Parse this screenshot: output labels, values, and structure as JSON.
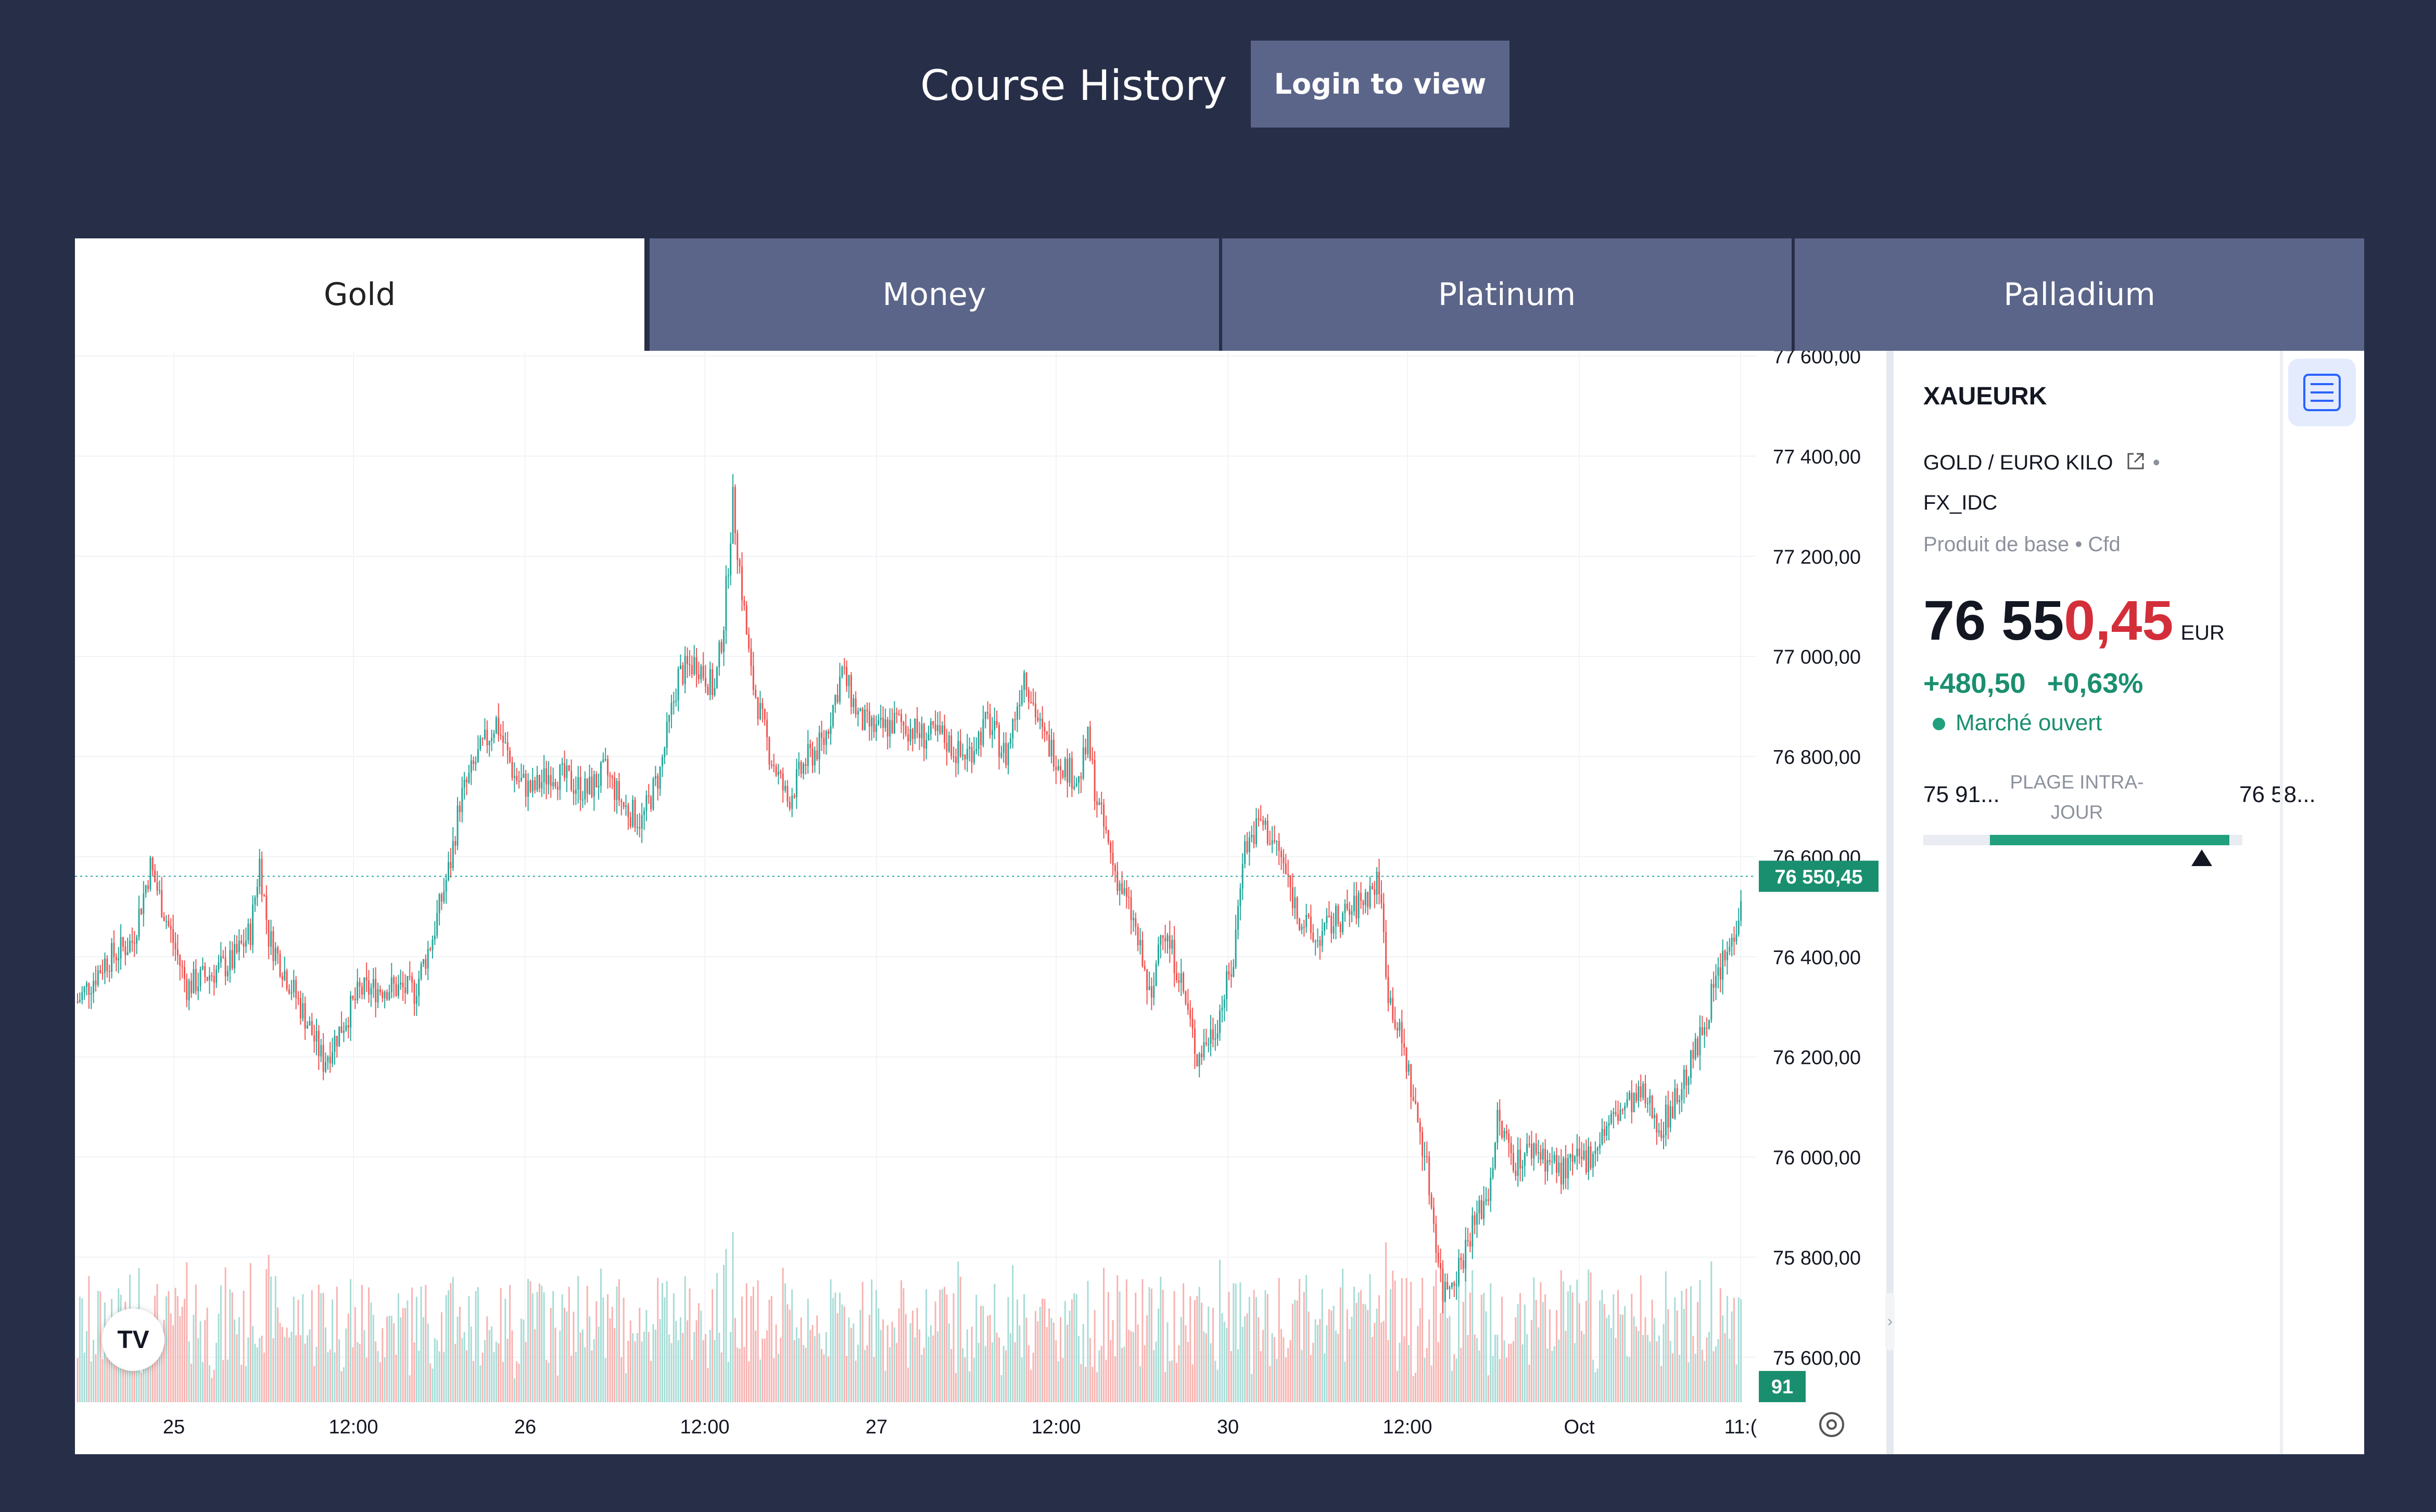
{
  "header": {
    "title": "Course History",
    "login_label": "Login to view"
  },
  "tabs": [
    {
      "label": "Gold",
      "active": true
    },
    {
      "label": "Money",
      "active": false
    },
    {
      "label": "Platinum",
      "active": false
    },
    {
      "label": "Palladium",
      "active": false
    }
  ],
  "symbol": {
    "ticker": "XAUEURK",
    "description": "GOLD / EURO KILO",
    "exchange": "FX_IDC",
    "category": "Produit de base",
    "type": "Cfd",
    "price_main": "76 55",
    "price_red": "0,45",
    "currency": "EUR",
    "change": "+480,50",
    "change_pct": "+0,63%",
    "market_status": "Marché ouvert",
    "range_low": "75 91...",
    "range_high": "76 58...",
    "range_label": "PLAGE INTRA-JOUR",
    "range_position": 0.95
  },
  "chart_data": {
    "type": "candlestick",
    "x_tick_labels": [
      "25",
      "12:00",
      "26",
      "12:00",
      "27",
      "12:00",
      "30",
      "12:00",
      "Oct",
      "11:("
    ],
    "y_tick_labels": [
      "77 600,00",
      "77 400,00",
      "77 200,00",
      "77 000,00",
      "76 800,00",
      "76 600,00",
      "76 400,00",
      "76 200,00",
      "76 000,00",
      "75 800,00",
      "75 600,00"
    ],
    "ylim": [
      75500,
      77600
    ],
    "last_price": 76550.45,
    "last_price_label": "76 550,45",
    "volume_label": "91",
    "close_path": [
      [
        0,
        76300
      ],
      [
        3,
        76380
      ],
      [
        6,
        76420
      ],
      [
        8,
        76570
      ],
      [
        10,
        76450
      ],
      [
        12,
        76330
      ],
      [
        14,
        76350
      ],
      [
        17,
        76380
      ],
      [
        19,
        76440
      ],
      [
        20,
        76580
      ],
      [
        21,
        76430
      ],
      [
        23,
        76350
      ],
      [
        25,
        76270
      ],
      [
        27,
        76180
      ],
      [
        29,
        76250
      ],
      [
        31,
        76320
      ],
      [
        34,
        76330
      ],
      [
        37,
        76320
      ],
      [
        39,
        76430
      ],
      [
        41,
        76580
      ],
      [
        42,
        76700
      ],
      [
        44,
        76790
      ],
      [
        46,
        76860
      ],
      [
        48,
        76750
      ],
      [
        50,
        76720
      ],
      [
        52,
        76760
      ],
      [
        54,
        76740
      ],
      [
        56,
        76720
      ],
      [
        58,
        76760
      ],
      [
        60,
        76690
      ],
      [
        62,
        76660
      ],
      [
        64,
        76760
      ],
      [
        66,
        76950
      ],
      [
        68,
        76980
      ],
      [
        70,
        76920
      ],
      [
        71,
        77060
      ],
      [
        72,
        77300
      ],
      [
        73,
        77120
      ],
      [
        74,
        76950
      ],
      [
        76,
        76800
      ],
      [
        78,
        76700
      ],
      [
        80,
        76780
      ],
      [
        82,
        76820
      ],
      [
        84,
        76960
      ],
      [
        86,
        76860
      ],
      [
        88,
        76840
      ],
      [
        90,
        76860
      ],
      [
        93,
        76830
      ],
      [
        95,
        76830
      ],
      [
        97,
        76790
      ],
      [
        98,
        76800
      ],
      [
        100,
        76860
      ],
      [
        102,
        76790
      ],
      [
        104,
        76960
      ],
      [
        106,
        76830
      ],
      [
        108,
        76780
      ],
      [
        110,
        76740
      ],
      [
        111,
        76820
      ],
      [
        112,
        76700
      ],
      [
        114,
        76560
      ],
      [
        116,
        76460
      ],
      [
        118,
        76290
      ],
      [
        119,
        76460
      ],
      [
        121,
        76360
      ],
      [
        123,
        76190
      ],
      [
        125,
        76250
      ],
      [
        127,
        76380
      ],
      [
        128,
        76600
      ],
      [
        130,
        76660
      ],
      [
        132,
        76600
      ],
      [
        134,
        76480
      ],
      [
        136,
        76420
      ],
      [
        138,
        76460
      ],
      [
        140,
        76480
      ],
      [
        142,
        76520
      ],
      [
        143,
        76540
      ],
      [
        144,
        76320
      ],
      [
        145,
        76250
      ],
      [
        146,
        76180
      ],
      [
        147,
        76080
      ],
      [
        148,
        76000
      ],
      [
        150,
        75720
      ],
      [
        152,
        75780
      ],
      [
        153,
        75840
      ],
      [
        155,
        75920
      ],
      [
        156,
        76060
      ],
      [
        158,
        75980
      ],
      [
        160,
        76010
      ],
      [
        163,
        75960
      ],
      [
        166,
        75990
      ],
      [
        168,
        76050
      ],
      [
        170,
        76090
      ],
      [
        172,
        76110
      ],
      [
        174,
        76050
      ],
      [
        176,
        76120
      ],
      [
        178,
        76210
      ],
      [
        180,
        76340
      ],
      [
        182,
        76430
      ],
      [
        183,
        76550
      ]
    ]
  },
  "colors": {
    "up": "#26a69a",
    "down": "#ef5350",
    "accent_tab": "#5b6589",
    "background": "#272e48",
    "price_red": "#d32f3a",
    "change_green": "#1a8f6f"
  }
}
